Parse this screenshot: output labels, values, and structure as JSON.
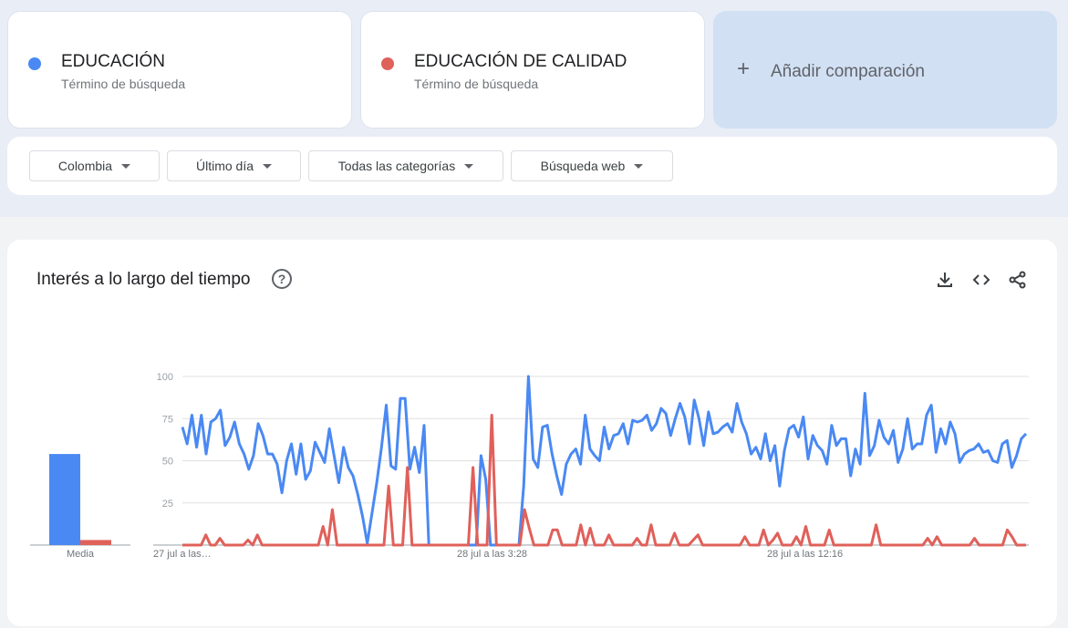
{
  "terms": [
    {
      "name": "EDUCACIÓN",
      "sub": "Término de búsqueda",
      "color": "#4a89f3"
    },
    {
      "name": "EDUCACIÓN DE CALIDAD",
      "sub": "Término de búsqueda",
      "color": "#e0605a"
    }
  ],
  "add_comparison": {
    "icon": "plus-icon",
    "label": "Añadir comparación"
  },
  "filters": [
    "Colombia",
    "Último día",
    "Todas las categorías",
    "Búsqueda web"
  ],
  "panel": {
    "title": "Interés a lo largo del tiempo",
    "help": "?",
    "actions": [
      "download-icon",
      "embed-code-icon",
      "share-icon"
    ]
  },
  "chart_data": [
    {
      "type": "bar",
      "categories": [
        "Media"
      ],
      "series": [
        {
          "name": "EDUCACIÓN",
          "values": [
            54
          ],
          "color": "#4a89f3"
        },
        {
          "name": "EDUCACIÓN DE CALIDAD",
          "values": [
            3
          ],
          "color": "#e0605a"
        }
      ],
      "ylim": [
        0,
        100
      ]
    },
    {
      "type": "line",
      "ylim": [
        0,
        100
      ],
      "yticks": [
        25,
        50,
        75,
        100
      ],
      "grid": true,
      "xticks": [
        "27 jul a las…",
        "28 jul a las 3:28",
        "28 jul a las 12:16"
      ],
      "series": [
        {
          "name": "EDUCACIÓN",
          "color": "#4a89f3",
          "values": [
            70,
            60,
            77,
            58,
            77,
            54,
            73,
            75,
            80,
            59,
            64,
            73,
            60,
            54,
            45,
            53,
            72,
            65,
            54,
            54,
            48,
            31,
            50,
            60,
            42,
            60,
            39,
            44,
            61,
            55,
            49,
            69,
            53,
            37,
            58,
            46,
            41,
            30,
            17,
            1,
            19,
            37,
            58,
            83,
            47,
            45,
            87,
            87,
            45,
            58,
            43,
            71,
            0,
            0,
            0,
            0,
            0,
            0,
            0,
            0,
            0,
            0,
            0,
            53,
            39,
            0,
            0,
            0,
            0,
            0,
            0,
            0,
            35,
            100,
            51,
            46,
            70,
            71,
            54,
            41,
            30,
            48,
            54,
            57,
            48,
            77,
            57,
            53,
            50,
            70,
            57,
            65,
            66,
            72,
            60,
            74,
            73,
            74,
            77,
            68,
            72,
            81,
            78,
            65,
            75,
            84,
            76,
            60,
            86,
            75,
            59,
            79,
            66,
            67,
            70,
            72,
            67,
            84,
            73,
            66,
            54,
            58,
            51,
            66,
            50,
            59,
            35,
            56,
            69,
            71,
            64,
            76,
            51,
            65,
            59,
            56,
            48,
            71,
            59,
            63,
            63,
            41,
            57,
            48,
            90,
            53,
            59,
            74,
            64,
            60,
            68,
            49,
            57,
            75,
            57,
            60,
            60,
            77,
            83,
            55,
            69,
            60,
            73,
            66,
            49,
            54,
            56,
            57,
            60,
            55,
            56,
            50,
            49,
            60,
            62,
            46,
            53,
            63,
            66
          ]
        },
        {
          "name": "EDUCACIÓN DE CALIDAD",
          "color": "#e0605a",
          "values": [
            0,
            0,
            0,
            0,
            0,
            6,
            0,
            0,
            4,
            0,
            0,
            0,
            0,
            0,
            3,
            0,
            6,
            0,
            0,
            0,
            0,
            0,
            0,
            0,
            0,
            0,
            0,
            0,
            0,
            0,
            11,
            0,
            21,
            0,
            0,
            0,
            0,
            0,
            0,
            0,
            0,
            0,
            0,
            0,
            35,
            0,
            0,
            0,
            46,
            0,
            0,
            0,
            0,
            0,
            0,
            0,
            0,
            0,
            0,
            0,
            0,
            0,
            46,
            0,
            0,
            0,
            77,
            0,
            0,
            0,
            0,
            0,
            0,
            21,
            10,
            0,
            0,
            0,
            0,
            9,
            9,
            0,
            0,
            0,
            0,
            12,
            0,
            10,
            0,
            0,
            0,
            6,
            0,
            0,
            0,
            0,
            0,
            4,
            0,
            0,
            12,
            0,
            0,
            0,
            0,
            7,
            0,
            0,
            0,
            3,
            6,
            0,
            0,
            0,
            0,
            0,
            0,
            0,
            0,
            0,
            5,
            0,
            0,
            0,
            9,
            0,
            3,
            7,
            0,
            0,
            0,
            5,
            0,
            11,
            0,
            0,
            0,
            0,
            9,
            0,
            0,
            0,
            0,
            0,
            0,
            0,
            0,
            0,
            12,
            0,
            0,
            0,
            0,
            0,
            0,
            0,
            0,
            0,
            0,
            4,
            0,
            5,
            0,
            0,
            0,
            0,
            0,
            0,
            0,
            4,
            0,
            0,
            0,
            0,
            0,
            0,
            9,
            5,
            0,
            0,
            0
          ]
        }
      ]
    }
  ]
}
